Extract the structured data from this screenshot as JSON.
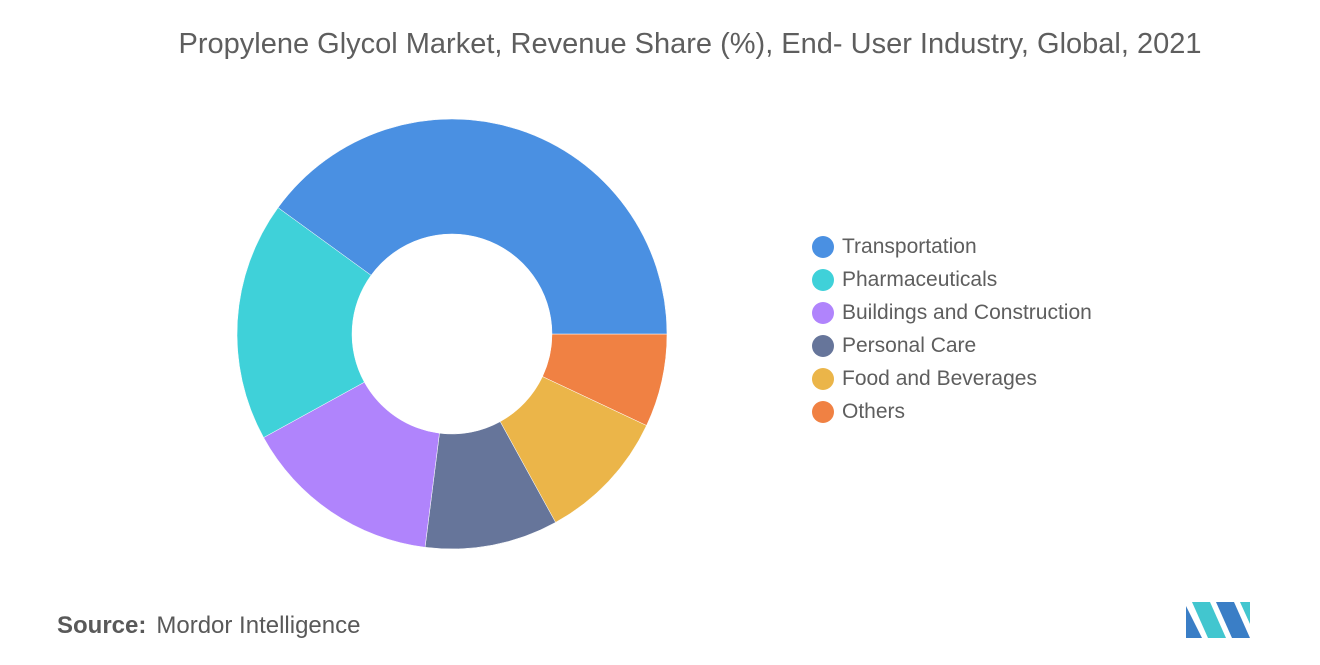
{
  "chart_data": {
    "type": "pie",
    "donut": true,
    "title": "Propylene Glycol Market, Revenue Share (%), End- User Industry, Global, 2021",
    "legend_position": "right",
    "categories": [
      "Transportation",
      "Pharmaceuticals",
      "Buildings and Construction",
      "Personal Care",
      "Food and Beverages",
      "Others"
    ],
    "values": [
      40,
      18,
      15,
      10,
      10,
      7
    ],
    "colors": [
      "#4a90e2",
      "#3fd1d9",
      "#b084fc",
      "#66759a",
      "#ebb549",
      "#f08143"
    ]
  },
  "source": {
    "label": "Source:",
    "text": "Mordor Intelligence"
  },
  "logo": {
    "icon": "mordor-intelligence-logo",
    "colors": [
      "#3a7ec6",
      "#42c6cf"
    ]
  }
}
